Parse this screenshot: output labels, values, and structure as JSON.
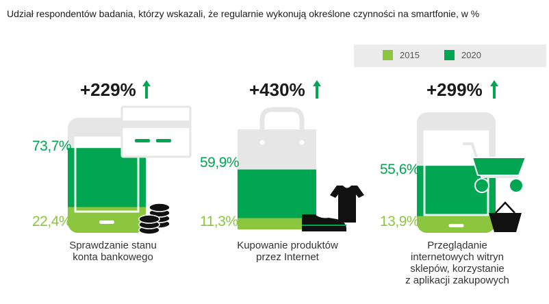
{
  "title": "Udział respondentów badania, którzy wskazali, że regularnie wykonują określone czynności na smartfonie, w %",
  "colors": {
    "y2015": "#8cc63f",
    "y2020": "#00a651",
    "frame_light": "#e6e6e6"
  },
  "legend": [
    {
      "label": "2015",
      "color": "#8cc63f"
    },
    {
      "label": "2020",
      "color": "#00a651"
    }
  ],
  "chart_data": {
    "type": "bar",
    "categories": [
      "Sprawdzanie stanu konta bankowego",
      "Kupowanie produktów przez Internet",
      "Przeglądanie internetowych witryn sklepów, korzystanie z aplikacji zakupowych"
    ],
    "series": [
      {
        "name": "2015",
        "values": [
          22.4,
          11.3,
          13.9
        ]
      },
      {
        "name": "2020",
        "values": [
          73.7,
          59.9,
          55.6
        ]
      }
    ],
    "growth_labels": [
      "+229%",
      "+430%",
      "+299%"
    ],
    "value_labels_2015": [
      "22,4%",
      "11,3%",
      "13,9%"
    ],
    "value_labels_2020": [
      "73,7%",
      "59,9%",
      "55,6%"
    ],
    "ylim": [
      0,
      100
    ]
  },
  "panels": [
    {
      "growth": "+229%",
      "v2020": "73,7%",
      "v2015": "22,4%",
      "caption_lines": [
        "Sprawdzanie stanu",
        "konta bankowego"
      ],
      "icon": "coins-icon",
      "device": "phone",
      "overlay": "card-icon"
    },
    {
      "growth": "+430%",
      "v2020": "59,9%",
      "v2015": "11,3%",
      "caption_lines": [
        "Kupowanie produktów",
        "przez Internet"
      ],
      "icon": "shoe-tshirt-icon",
      "device": "shopping-bag"
    },
    {
      "growth": "+299%",
      "v2020": "55,6%",
      "v2015": "13,9%",
      "caption_lines": [
        "Przeglądanie",
        "internetowych witryn",
        "sklepów, korzystanie",
        "z aplikacji zakupowych"
      ],
      "icon": "basket-icon",
      "device": "phone",
      "overlay": "cart-icon"
    }
  ]
}
